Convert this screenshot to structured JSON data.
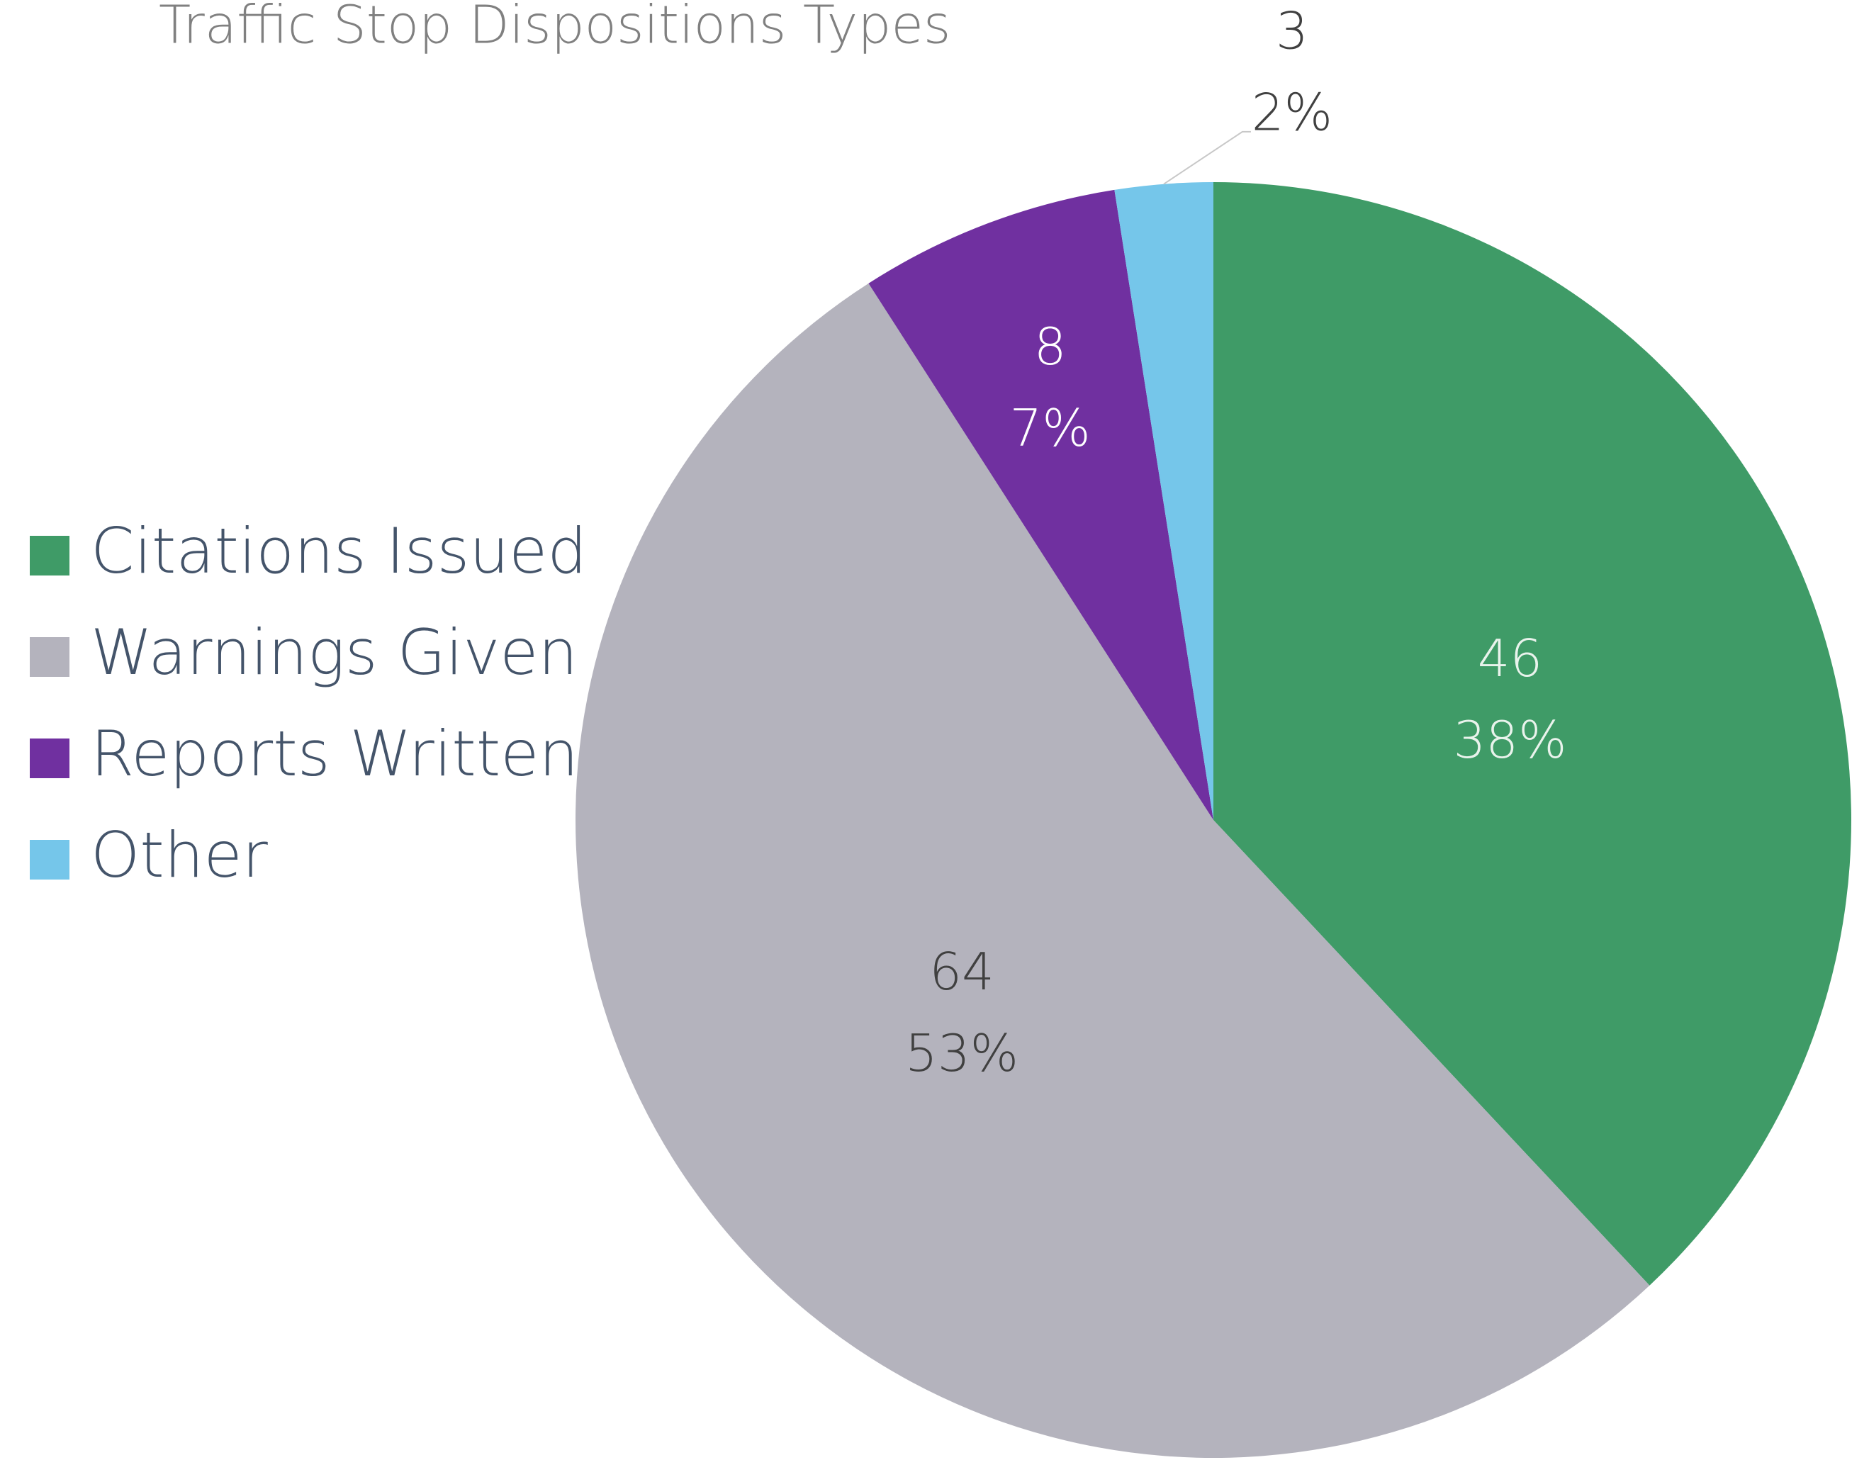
{
  "chart_data": {
    "type": "pie",
    "title": "Traffic Stop Dispositions Types",
    "categories": [
      "Citations Issued",
      "Warnings Given",
      "Reports Written",
      "Other"
    ],
    "values": [
      46,
      64,
      8,
      3
    ],
    "percent_labels": [
      "38%",
      "53%",
      "7%",
      "2%"
    ],
    "colors": [
      "#3f9b67",
      "#b4b3bd",
      "#7030a0",
      "#75c6ea"
    ],
    "legend": "left"
  }
}
